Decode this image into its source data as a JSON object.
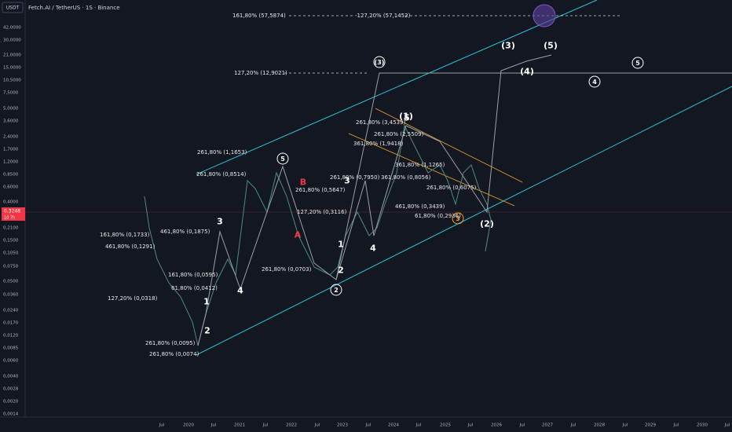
{
  "header": {
    "currency": "USDT",
    "title": "Fetch.AI / TetherUS · 1S · Binance"
  },
  "price_axis": [
    "42,0000",
    "30,0000",
    "21,0000",
    "15,0000",
    "10,5000",
    "7,5000",
    "5,0000",
    "3,6000",
    "2,4000",
    "1,7000",
    "1,2000",
    "0,8500",
    "0,6000",
    "0,4000",
    "0,2100",
    "0,1500",
    "0,1050",
    "0,0750",
    "0,0500",
    "0,0360",
    "0,0240",
    "0,0170",
    "0,0120",
    "0,0085",
    "0,0060",
    "0,0040",
    "0,0028",
    "0,0020",
    "0,0014"
  ],
  "time_axis": [
    "Jul",
    "2020",
    "Jul",
    "2021",
    "Jul",
    "2022",
    "Jul",
    "2023",
    "Jul",
    "2024",
    "Jul",
    "2025",
    "Jul",
    "2026",
    "Jul",
    "2027",
    "Jul",
    "2028",
    "Jul",
    "2029",
    "Jul",
    "2030",
    "Jul"
  ],
  "price_tag": {
    "price": "0,3248",
    "countdown": "1d 7h"
  },
  "annotations": [
    "161,80% (57,5874)",
    "-127,20% (57,1452)",
    "127,20% (12,9021)",
    "261,80% (3,4539)",
    "261,80% (2,5509)",
    "361,80% (1,9418)",
    "261,80% (1,1653)",
    "361,80% (1,1265)",
    "261,80% (0,8514)",
    "261,80% (0,7950)",
    "361,80% (0,8056)",
    "261,80% (0,5647)",
    "261,80% (0,6075)",
    "127,20% (0,3116)",
    "461,80% (0,3439)",
    "61,80% (0,2936)",
    "161,80% (0,1733)",
    "461,80% (0,1875)",
    "461,80% (0,1291)",
    "261,80% (0,0703)",
    "161,80% (0,0595)",
    "61,80% (0,0412)",
    "127,20% (0,0318)",
    "261,80% (0,0095)",
    "261,80% (0,0074)"
  ],
  "wave_labels": [
    "3",
    "4",
    "1",
    "2",
    "1",
    "2",
    "3",
    "4",
    "5",
    "B",
    "A",
    "(3)",
    "(1)",
    "(3)",
    "(5)",
    "(4)",
    "(2)",
    "2",
    "5",
    "4",
    "5",
    "3"
  ]
}
